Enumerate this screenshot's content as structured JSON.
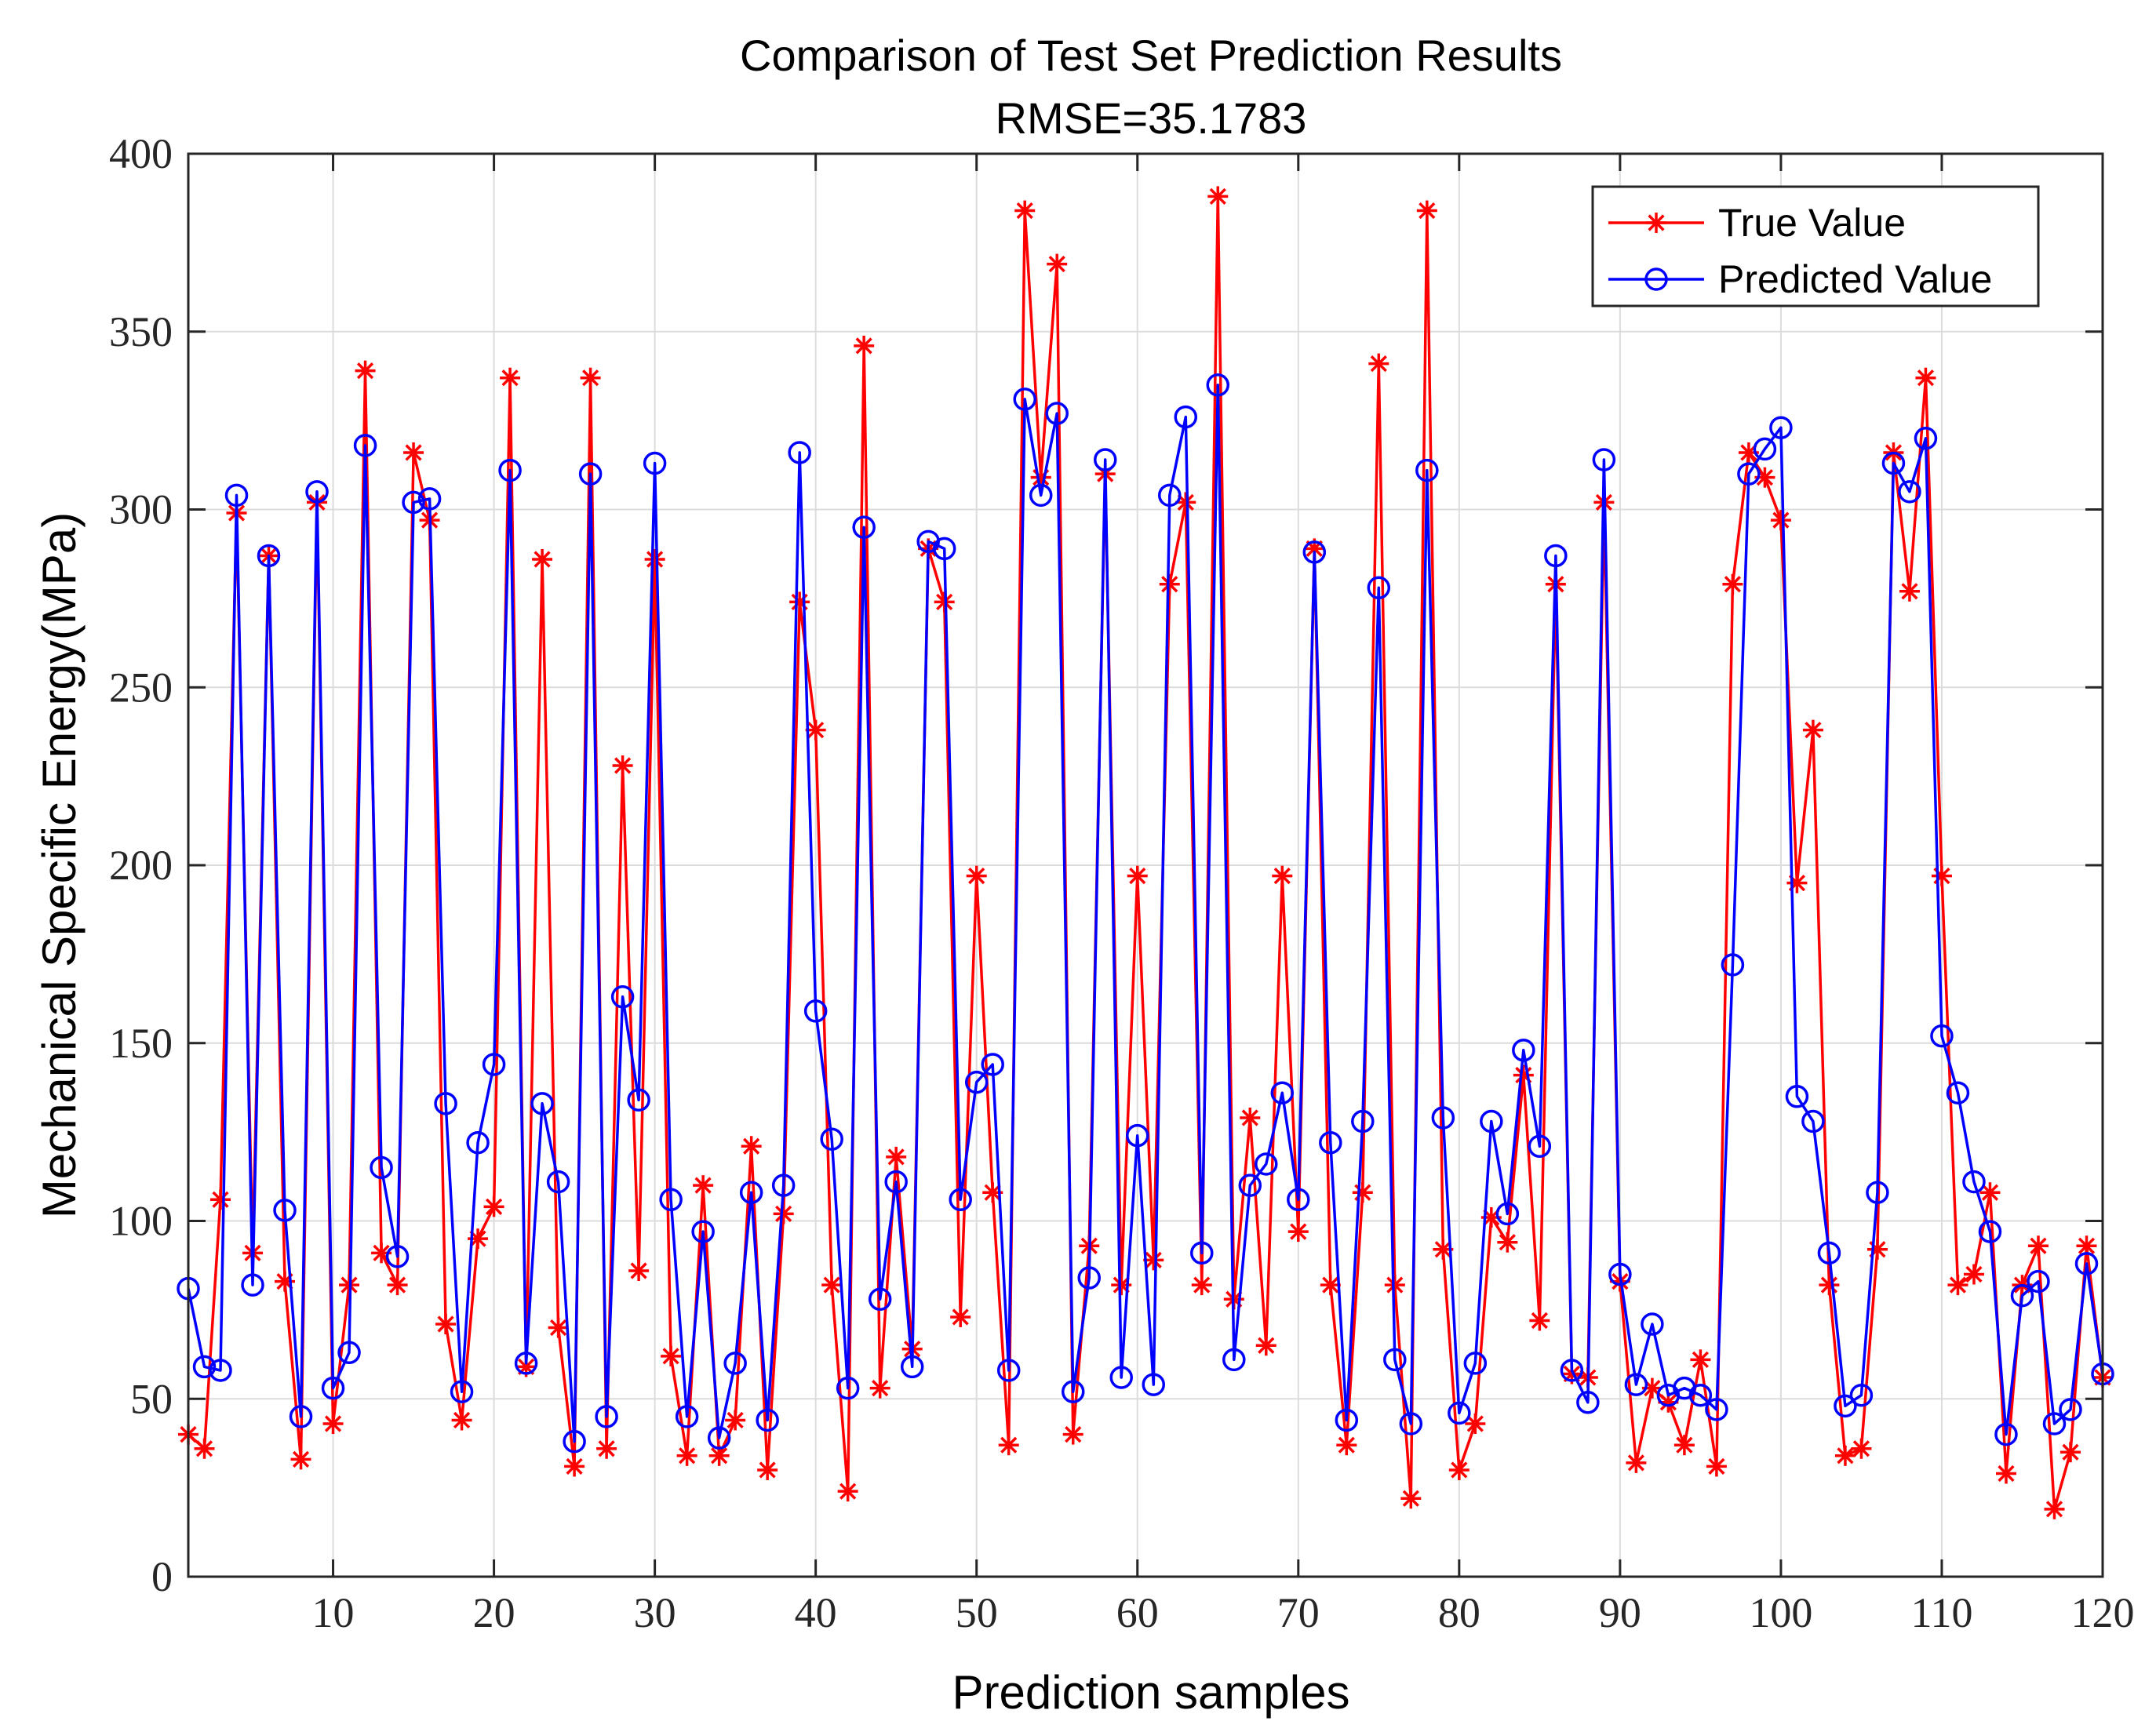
{
  "chart_data": {
    "type": "line",
    "title": "Comparison of Test Set Prediction Results",
    "subtitle": "RMSE=35.1783",
    "xlabel": "Prediction samples",
    "ylabel": "Mechanical Specific Energy(MPa)",
    "xlim": [
      1,
      120
    ],
    "ylim": [
      0,
      400
    ],
    "xticks": [
      10,
      20,
      30,
      40,
      50,
      60,
      70,
      80,
      90,
      100,
      110,
      120
    ],
    "yticks": [
      0,
      50,
      100,
      150,
      200,
      250,
      300,
      350,
      400
    ],
    "grid": true,
    "legend_position": "top-right",
    "series": [
      {
        "name": "True Value",
        "color": "#ff0000",
        "marker": "asterisk",
        "values": [
          40,
          36,
          106,
          299,
          91,
          287,
          83,
          33,
          302,
          43,
          82,
          339,
          91,
          82,
          316,
          297,
          71,
          44,
          95,
          104,
          337,
          59,
          286,
          70,
          31,
          337,
          36,
          228,
          86,
          286,
          62,
          34,
          110,
          34,
          44,
          121,
          30,
          102,
          274,
          238,
          82,
          24,
          346,
          53,
          118,
          64,
          289,
          274,
          73,
          197,
          108,
          37,
          384,
          309,
          369,
          40,
          93,
          310,
          82,
          197,
          89,
          279,
          302,
          82,
          388,
          78,
          129,
          65,
          197,
          97,
          289,
          82,
          37,
          108,
          341,
          82,
          22,
          384,
          92,
          30,
          43,
          101,
          94,
          141,
          72,
          279,
          57,
          56,
          302,
          83,
          32,
          53,
          49,
          37,
          61,
          31,
          279,
          316,
          309,
          297,
          195,
          238,
          82,
          34,
          36,
          92,
          316,
          277,
          337,
          197,
          82,
          85,
          108,
          29,
          82,
          93,
          19,
          35,
          93,
          56
        ]
      },
      {
        "name": "Predicted Value",
        "color": "#0000ff",
        "marker": "circle",
        "values": [
          81,
          59,
          58,
          304,
          82,
          287,
          103,
          45,
          305,
          53,
          63,
          318,
          115,
          90,
          302,
          303,
          133,
          52,
          122,
          144,
          311,
          60,
          133,
          111,
          38,
          310,
          45,
          163,
          134,
          313,
          106,
          45,
          97,
          39,
          60,
          108,
          44,
          110,
          316,
          159,
          123,
          53,
          295,
          78,
          111,
          59,
          291,
          289,
          106,
          139,
          144,
          58,
          331,
          304,
          327,
          52,
          84,
          314,
          56,
          124,
          54,
          304,
          326,
          91,
          335,
          61,
          110,
          116,
          136,
          106,
          288,
          122,
          44,
          128,
          278,
          61,
          43,
          311,
          129,
          46,
          60,
          128,
          102,
          148,
          121,
          287,
          58,
          49,
          314,
          85,
          54,
          71,
          51,
          53,
          51,
          47,
          172,
          310,
          317,
          323,
          135,
          128,
          91,
          48,
          51,
          108,
          313,
          305,
          320,
          152,
          136,
          111,
          97,
          40,
          79,
          83,
          43,
          47,
          88,
          57
        ]
      }
    ]
  }
}
